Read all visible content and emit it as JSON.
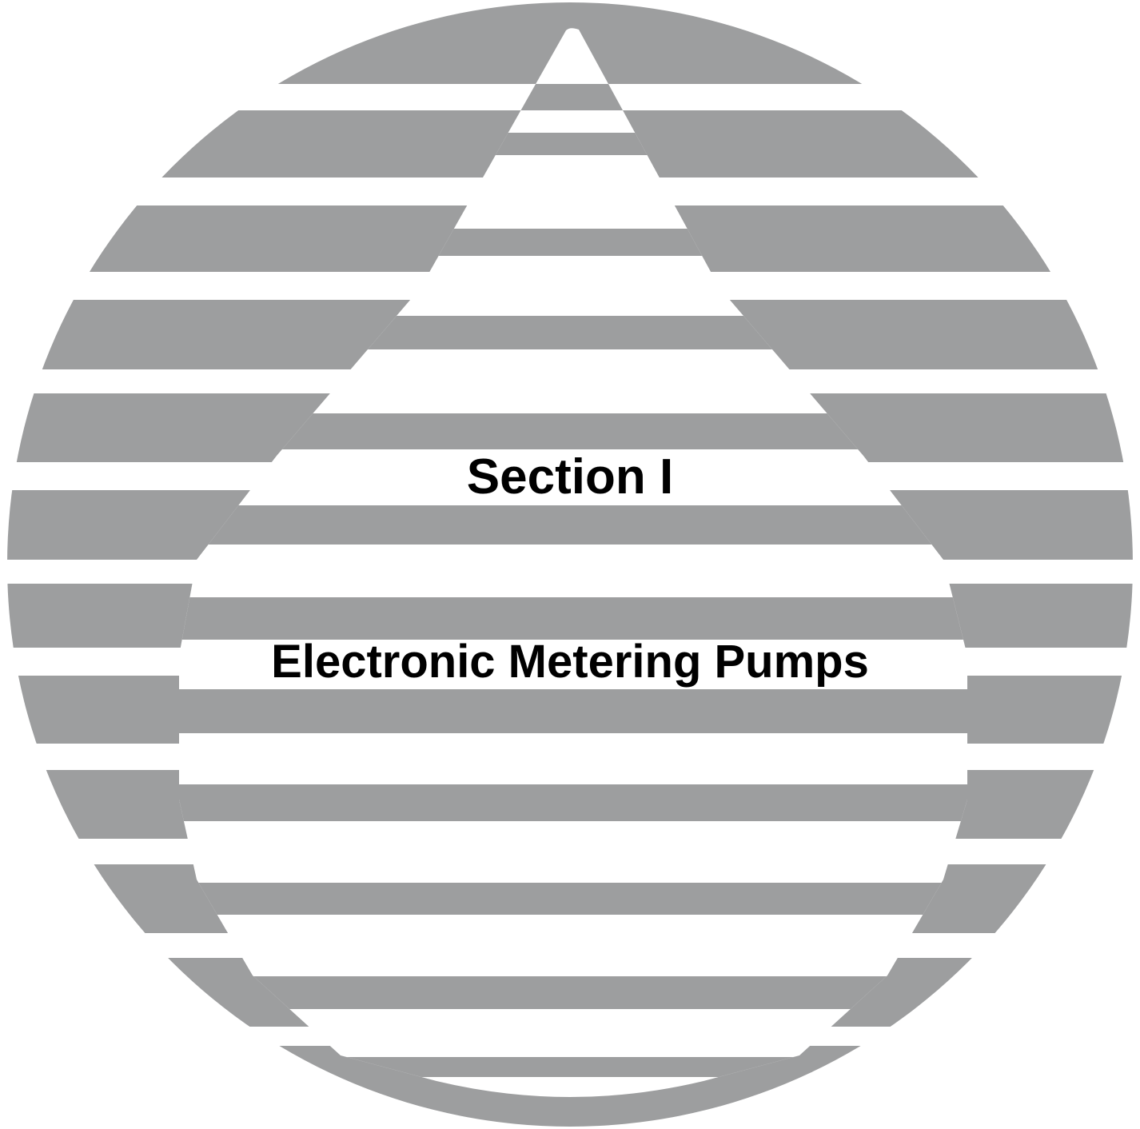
{
  "section": {
    "title": "Section I",
    "subtitle": "Electronic Metering Pumps"
  },
  "colors": {
    "stripe": "#9d9e9f",
    "background": "#ffffff",
    "text": "#000000"
  },
  "emblem": {
    "shape": "striped-globe",
    "stripe_count": 14
  }
}
